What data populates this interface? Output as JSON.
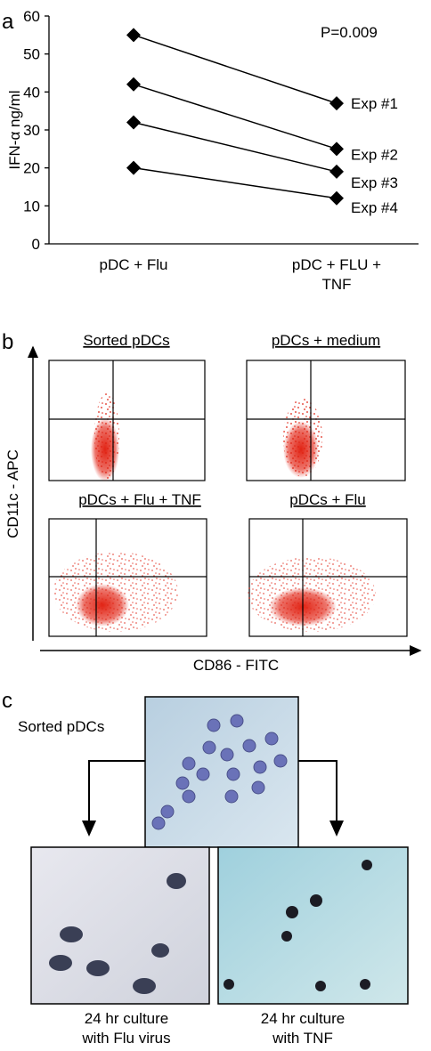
{
  "chart_data": {
    "type": "line",
    "panel_label": "a",
    "ylabel": "IFN-α ng/ml",
    "annotation": "P=0.009",
    "categories": [
      "pDC + Flu",
      "pDC + FLU + TNF"
    ],
    "series": [
      {
        "name": "Exp #1",
        "color": "#000000",
        "values": [
          55,
          37
        ]
      },
      {
        "name": "Exp #2",
        "color": "#000000",
        "values": [
          42,
          25
        ]
      },
      {
        "name": "Exp #3",
        "color": "#000000",
        "values": [
          32,
          19
        ]
      },
      {
        "name": "Exp #4",
        "color": "#000000",
        "values": [
          20,
          12
        ]
      }
    ],
    "ylim": [
      0,
      60
    ],
    "yticks": [
      0,
      10,
      20,
      30,
      40,
      50,
      60
    ],
    "grid": false
  },
  "panel_b": {
    "label": "b",
    "y_label": "CD11c - APC",
    "x_label": "CD86 - FITC",
    "plots": [
      {
        "title": "Sorted pDCs"
      },
      {
        "title": "pDCs + medium"
      },
      {
        "title": "pDCs + Flu + TNF"
      },
      {
        "title": "pDCs + Flu"
      }
    ]
  },
  "panel_c": {
    "label": "c",
    "source_label": "Sorted pDCs",
    "images": [
      {
        "caption": [
          "24 hr culture",
          "with Flu virus"
        ]
      },
      {
        "caption": [
          "24 hr culture",
          "with TNF"
        ]
      }
    ]
  }
}
